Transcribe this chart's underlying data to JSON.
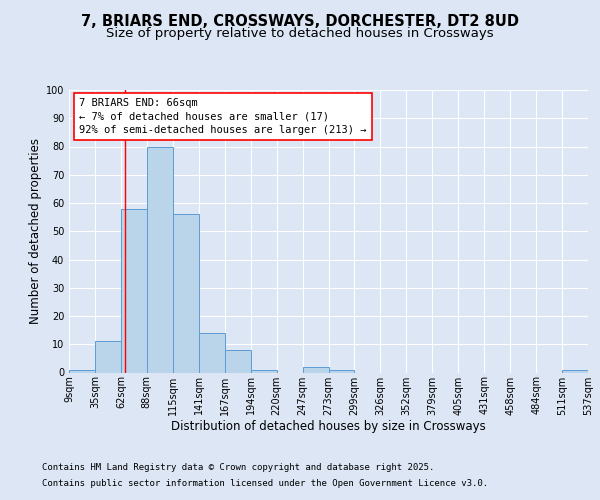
{
  "title_line1": "7, BRIARS END, CROSSWAYS, DORCHESTER, DT2 8UD",
  "title_line2": "Size of property relative to detached houses in Crossways",
  "xlabel": "Distribution of detached houses by size in Crossways",
  "ylabel": "Number of detached properties",
  "tick_labels": [
    "9sqm",
    "35sqm",
    "62sqm",
    "88sqm",
    "115sqm",
    "141sqm",
    "167sqm",
    "194sqm",
    "220sqm",
    "247sqm",
    "273sqm",
    "299sqm",
    "326sqm",
    "352sqm",
    "379sqm",
    "405sqm",
    "431sqm",
    "458sqm",
    "484sqm",
    "511sqm",
    "537sqm"
  ],
  "values": [
    1,
    11,
    58,
    80,
    56,
    14,
    8,
    1,
    0,
    2,
    1,
    0,
    0,
    0,
    0,
    0,
    0,
    0,
    0,
    1
  ],
  "bar_color": "#bad4ea",
  "bar_edge_color": "#5b9bd5",
  "background_color": "#dce6f5",
  "plot_bg_color": "#dce6f5",
  "grid_color": "#ffffff",
  "vline_color": "#ff0000",
  "vline_bin": 2,
  "ylim": [
    0,
    100
  ],
  "yticks": [
    0,
    10,
    20,
    30,
    40,
    50,
    60,
    70,
    80,
    90,
    100
  ],
  "annotation_title": "7 BRIARS END: 66sqm",
  "annotation_line1": "← 7% of detached houses are smaller (17)",
  "annotation_line2": "92% of semi-detached houses are larger (213) →",
  "annotation_box_facecolor": "#ffffff",
  "annotation_box_edgecolor": "#ff0000",
  "footnote1": "Contains HM Land Registry data © Crown copyright and database right 2025.",
  "footnote2": "Contains public sector information licensed under the Open Government Licence v3.0.",
  "title_fontsize": 10.5,
  "subtitle_fontsize": 9.5,
  "axis_label_fontsize": 8.5,
  "tick_fontsize": 7,
  "annotation_fontsize": 7.5,
  "footnote_fontsize": 6.5
}
